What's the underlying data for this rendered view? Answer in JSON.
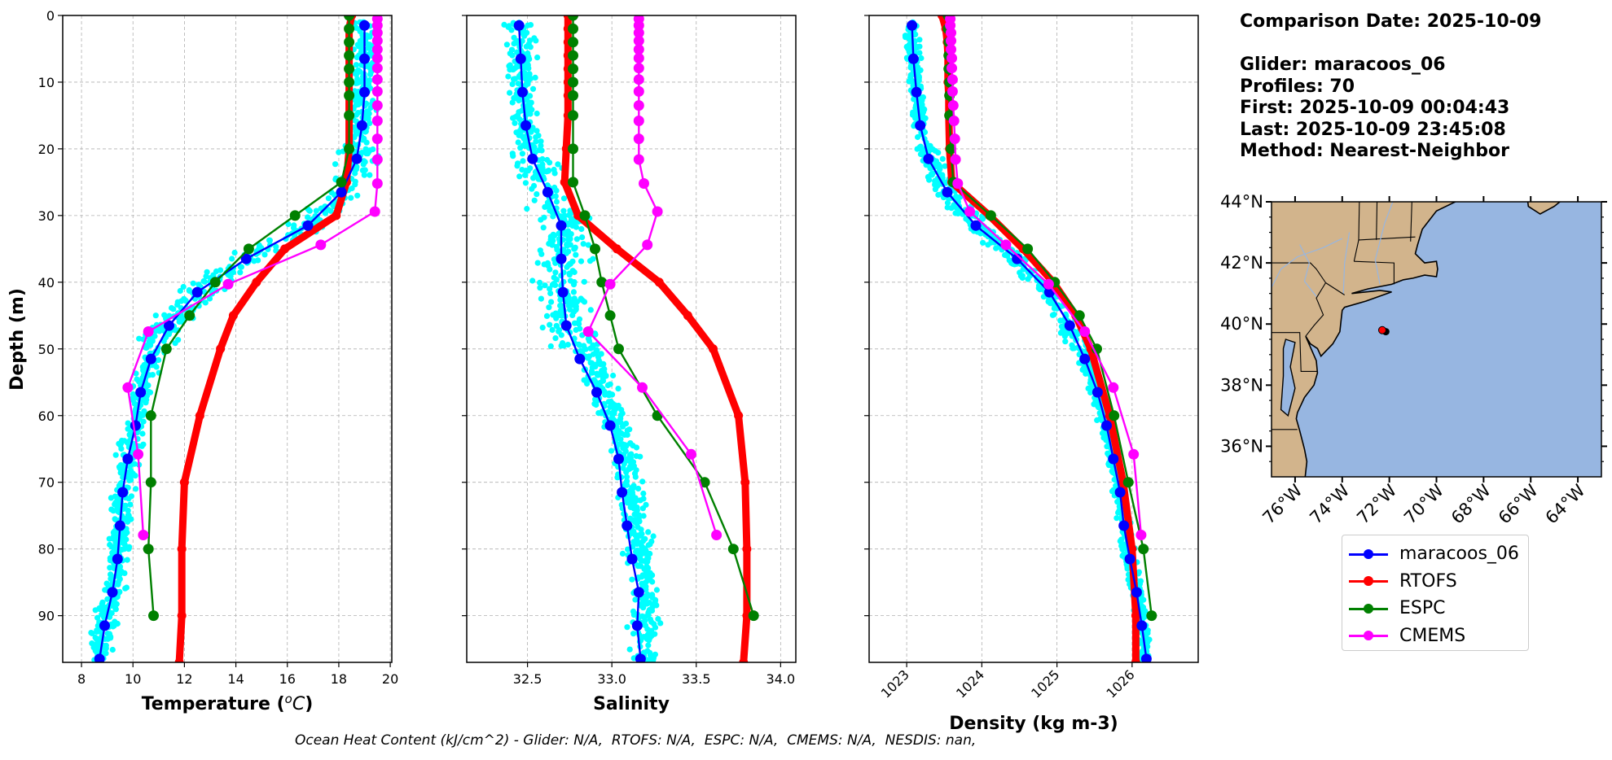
{
  "info": {
    "comparison_date": "Comparison Date: 2025-10-09",
    "glider": "Glider: maracoos_06",
    "profiles": "Profiles: 70",
    "first": "First: 2025-10-09 00:04:43",
    "last": "Last: 2025-10-09 23:45:08",
    "method": "Method: Nearest-Neighbor"
  },
  "caption": "Ocean Heat Content (kJ/cm^2) - Glider: N/A,  RTOFS: N/A,  ESPC: N/A,  CMEMS: N/A,  NESDIS: nan,",
  "legend": [
    {
      "label": "maracoos_06",
      "color": "#0000ff"
    },
    {
      "label": "RTOFS",
      "color": "#ff0000"
    },
    {
      "label": "ESPC",
      "color": "#008000"
    },
    {
      "label": "CMEMS",
      "color": "#ff00ff"
    }
  ],
  "colors": {
    "glider_scatter": "#00ffff",
    "glider": "#0000ff",
    "rtofs": "#ff0000",
    "espc": "#008000",
    "cmems": "#ff00ff",
    "land": "#d2b48c",
    "ocean": "#97b6e1",
    "grid": "#b0b0b0"
  },
  "chart_data": [
    {
      "type": "line",
      "title": "",
      "xlabel": "Temperature (°C)",
      "ylabel": "Depth (m)",
      "xlim": [
        7.27,
        20.06
      ],
      "ylim": [
        97,
        0
      ],
      "xticks": [
        8,
        10,
        12,
        14,
        16,
        18,
        20
      ],
      "yticks": [
        0,
        10,
        20,
        30,
        40,
        50,
        60,
        70,
        80,
        90
      ],
      "grid": true,
      "series": [
        {
          "name": "maracoos_06",
          "depth": [
            1.5,
            6.5,
            11.5,
            16.5,
            21.5,
            26.5,
            31.5,
            36.5,
            41.5,
            46.5,
            51.5,
            56.5,
            61.5,
            66.5,
            71.5,
            76.5,
            81.5,
            86.5,
            91.5,
            96.5
          ],
          "values": [
            19.0,
            19.0,
            19.0,
            18.9,
            18.7,
            18.1,
            16.8,
            14.4,
            12.5,
            11.4,
            10.7,
            10.3,
            10.1,
            9.8,
            9.6,
            9.5,
            9.4,
            9.2,
            8.9,
            8.7
          ]
        },
        {
          "name": "RTOFS",
          "depth": [
            0,
            2,
            4,
            6,
            8,
            10,
            12,
            15,
            20,
            25,
            30,
            35,
            40,
            45,
            50,
            60,
            70,
            80,
            90,
            97
          ],
          "values": [
            18.5,
            18.4,
            18.4,
            18.4,
            18.4,
            18.4,
            18.4,
            18.4,
            18.4,
            18.3,
            17.9,
            15.9,
            14.8,
            13.9,
            13.4,
            12.6,
            12.0,
            11.9,
            11.9,
            11.8
          ]
        },
        {
          "name": "ESPC",
          "depth": [
            0,
            2,
            4,
            6,
            8,
            10,
            12,
            15,
            20,
            25,
            30,
            35,
            40,
            45,
            50,
            60,
            70,
            80,
            90
          ],
          "values": [
            18.4,
            18.4,
            18.4,
            18.4,
            18.4,
            18.4,
            18.4,
            18.4,
            18.4,
            18.1,
            16.3,
            14.5,
            13.2,
            12.2,
            11.3,
            10.7,
            10.7,
            10.6,
            10.8
          ]
        },
        {
          "name": "CMEMS",
          "depth": [
            0.5,
            1.5,
            2.6,
            3.8,
            5.1,
            6.4,
            7.9,
            9.6,
            11.4,
            13.5,
            15.8,
            18.5,
            21.6,
            25.2,
            29.4,
            34.4,
            40.3,
            47.4,
            55.8,
            65.8,
            77.9
          ],
          "values": [
            19.5,
            19.5,
            19.5,
            19.5,
            19.5,
            19.5,
            19.5,
            19.5,
            19.5,
            19.5,
            19.5,
            19.5,
            19.5,
            19.5,
            19.4,
            17.3,
            13.7,
            10.6,
            9.8,
            10.2,
            10.4
          ]
        }
      ]
    },
    {
      "type": "line",
      "xlabel": "Salinity",
      "ylabel": "",
      "xlim": [
        32.14,
        34.09
      ],
      "ylim": [
        97,
        0
      ],
      "xticks": [
        "32.5",
        "33.0",
        "33.5",
        "34.0"
      ],
      "yticks": [
        0,
        10,
        20,
        30,
        40,
        50,
        60,
        70,
        80,
        90
      ],
      "grid": true,
      "series": [
        {
          "name": "maracoos_06",
          "depth": [
            1.5,
            6.5,
            11.5,
            16.5,
            21.5,
            26.5,
            31.5,
            36.5,
            41.5,
            46.5,
            51.5,
            56.5,
            61.5,
            66.5,
            71.5,
            76.5,
            81.5,
            86.5,
            91.5,
            96.5
          ],
          "values": [
            32.45,
            32.46,
            32.47,
            32.49,
            32.53,
            32.62,
            32.7,
            32.7,
            32.71,
            32.73,
            32.81,
            32.91,
            32.99,
            33.04,
            33.06,
            33.09,
            33.12,
            33.16,
            33.15,
            33.17
          ]
        },
        {
          "name": "RTOFS",
          "depth": [
            0,
            2,
            4,
            6,
            8,
            10,
            12,
            15,
            20,
            25,
            30,
            35,
            40,
            45,
            50,
            60,
            70,
            80,
            90,
            97
          ],
          "values": [
            32.74,
            32.74,
            32.74,
            32.74,
            32.74,
            32.74,
            32.74,
            32.74,
            32.73,
            32.72,
            32.8,
            33.03,
            33.28,
            33.45,
            33.6,
            33.75,
            33.79,
            33.8,
            33.8,
            33.78
          ]
        },
        {
          "name": "ESPC",
          "depth": [
            0,
            2,
            4,
            6,
            8,
            10,
            12,
            15,
            20,
            25,
            30,
            35,
            40,
            45,
            50,
            60,
            70,
            80,
            90
          ],
          "values": [
            32.77,
            32.77,
            32.77,
            32.77,
            32.77,
            32.77,
            32.77,
            32.77,
            32.77,
            32.77,
            32.84,
            32.9,
            32.94,
            32.99,
            33.04,
            33.27,
            33.55,
            33.72,
            33.84
          ]
        },
        {
          "name": "CMEMS",
          "depth": [
            0.5,
            1.5,
            2.6,
            3.8,
            5.1,
            6.4,
            7.9,
            9.6,
            11.4,
            13.5,
            15.8,
            18.5,
            21.6,
            25.2,
            29.4,
            34.4,
            40.3,
            47.4,
            55.8,
            65.8,
            77.9
          ],
          "values": [
            33.16,
            33.16,
            33.16,
            33.16,
            33.16,
            33.16,
            33.16,
            33.16,
            33.16,
            33.16,
            33.16,
            33.16,
            33.16,
            33.19,
            33.27,
            33.21,
            32.99,
            32.86,
            33.18,
            33.47,
            33.62
          ]
        }
      ]
    },
    {
      "type": "line",
      "xlabel": "Density (kg m-3)",
      "ylabel": "",
      "xlim": [
        1022.5,
        1026.88
      ],
      "ylim": [
        97,
        0
      ],
      "xticks": [
        "1023",
        "1024",
        "1025",
        "1026"
      ],
      "yticks": [
        0,
        10,
        20,
        30,
        40,
        50,
        60,
        70,
        80,
        90
      ],
      "grid": true,
      "series": [
        {
          "name": "maracoos_06",
          "depth": [
            1.5,
            6.5,
            11.5,
            16.5,
            21.5,
            26.5,
            31.5,
            36.5,
            41.5,
            46.5,
            51.5,
            56.5,
            61.5,
            66.5,
            71.5,
            76.5,
            81.5,
            86.5,
            91.5,
            96.5
          ],
          "values": [
            1023.07,
            1023.09,
            1023.13,
            1023.18,
            1023.29,
            1023.54,
            1023.92,
            1024.47,
            1024.9,
            1025.17,
            1025.37,
            1025.54,
            1025.66,
            1025.75,
            1025.84,
            1025.89,
            1025.97,
            1026.06,
            1026.13,
            1026.19
          ]
        },
        {
          "name": "RTOFS",
          "depth": [
            0,
            2,
            4,
            6,
            8,
            10,
            12,
            15,
            20,
            25,
            30,
            35,
            40,
            45,
            50,
            60,
            70,
            80,
            90,
            97
          ],
          "values": [
            1023.47,
            1023.52,
            1023.54,
            1023.55,
            1023.55,
            1023.55,
            1023.56,
            1023.56,
            1023.57,
            1023.6,
            1024.1,
            1024.55,
            1024.95,
            1025.25,
            1025.45,
            1025.7,
            1025.88,
            1026.0,
            1026.05,
            1026.05
          ]
        },
        {
          "name": "ESPC",
          "depth": [
            0,
            2,
            4,
            6,
            8,
            10,
            12,
            15,
            20,
            25,
            30,
            35,
            40,
            45,
            50,
            60,
            70,
            80,
            90
          ],
          "values": [
            1023.55,
            1023.55,
            1023.56,
            1023.56,
            1023.56,
            1023.57,
            1023.57,
            1023.57,
            1023.59,
            1023.62,
            1024.12,
            1024.61,
            1024.97,
            1025.3,
            1025.53,
            1025.76,
            1025.95,
            1026.15,
            1026.26
          ]
        },
        {
          "name": "CMEMS",
          "depth": [
            0.5,
            1.5,
            2.6,
            3.8,
            5.1,
            6.4,
            7.9,
            9.6,
            11.4,
            13.5,
            15.8,
            18.5,
            21.6,
            25.2,
            29.4,
            34.4,
            40.3,
            47.4,
            55.8,
            65.8,
            77.9
          ],
          "values": [
            1023.58,
            1023.58,
            1023.59,
            1023.59,
            1023.59,
            1023.6,
            1023.6,
            1023.61,
            1023.61,
            1023.62,
            1023.63,
            1023.64,
            1023.65,
            1023.68,
            1023.84,
            1024.32,
            1024.89,
            1025.37,
            1025.75,
            1026.02,
            1026.12
          ]
        }
      ]
    },
    {
      "type": "map",
      "lon_range": [
        -77.0,
        -63.0
      ],
      "lat_range": [
        35.0,
        44.0
      ],
      "lon_ticks": [
        "76°W",
        "74°W",
        "72°W",
        "70°W",
        "68°W",
        "66°W",
        "64°W"
      ],
      "lat_ticks": [
        "36°N",
        "38°N",
        "40°N",
        "42°N",
        "44°N"
      ],
      "glider_position": {
        "lon": -72.3,
        "lat": 39.8
      }
    }
  ],
  "scatter_seed": 7
}
